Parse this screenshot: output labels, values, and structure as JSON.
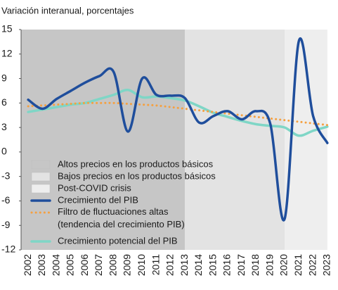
{
  "chart_data": {
    "type": "line",
    "title": "Variación interanual, porcentajes",
    "x": [
      2002,
      2003,
      2004,
      2005,
      2006,
      2007,
      2008,
      2009,
      2010,
      2011,
      2012,
      2013,
      2014,
      2015,
      2016,
      2017,
      2018,
      2019,
      2020,
      2021,
      2022,
      2023
    ],
    "xlim": [
      2001.5,
      2023.5
    ],
    "ylim": [
      -12,
      15
    ],
    "yticks": [
      15,
      12,
      9,
      6,
      3,
      0,
      -3,
      -6,
      -9,
      -12
    ],
    "regions": [
      {
        "name": "Altos precios en los productos básicos",
        "start": 2001.5,
        "end": 2013,
        "color": "#c6c6c6"
      },
      {
        "name": "Bajos precios en los productos básicos",
        "start": 2013,
        "end": 2020,
        "color": "#e3e3e3"
      },
      {
        "name": "Post-COVID crisis",
        "start": 2020,
        "end": 2023,
        "color": "#eeeeee"
      }
    ],
    "series": [
      {
        "name": "Crecimiento del PIB",
        "color": "#1f4e9c",
        "style": "solid",
        "values": [
          6.4,
          5.3,
          6.5,
          7.5,
          8.5,
          9.3,
          9.8,
          2.5,
          9.0,
          7.0,
          6.9,
          6.6,
          3.6,
          4.4,
          5.0,
          4.0,
          5.0,
          3.4,
          -8.2,
          13.6,
          4.4,
          1.1
        ]
      },
      {
        "name": "Filtro de fluctuaciones altas\n(tendencia del crecimiento PIB)",
        "color": "#f5a040",
        "style": "dotted",
        "values": [
          5.6,
          5.7,
          5.8,
          5.9,
          6.0,
          6.0,
          6.0,
          5.9,
          5.8,
          5.7,
          5.5,
          5.3,
          5.1,
          4.9,
          4.7,
          4.5,
          4.3,
          4.1,
          3.9,
          3.7,
          3.5,
          3.3
        ]
      },
      {
        "name": "Crecimiento potencial del PIB",
        "color": "#7fd6c6",
        "style": "solid",
        "values": [
          4.9,
          5.2,
          5.5,
          5.8,
          6.0,
          6.5,
          7.0,
          7.6,
          6.7,
          6.8,
          6.6,
          6.3,
          5.6,
          4.8,
          4.3,
          3.8,
          3.4,
          3.2,
          3.0,
          2.0,
          2.6,
          3.1
        ]
      }
    ]
  }
}
